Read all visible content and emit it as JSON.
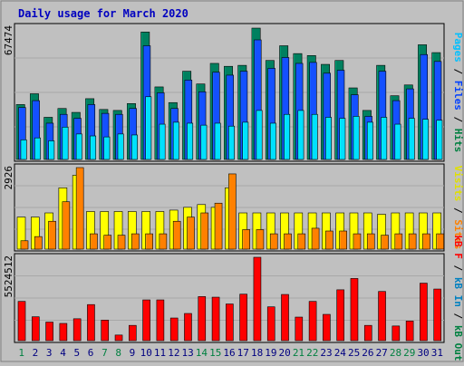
{
  "chart_data": {
    "type": "bar",
    "title": "Daily usage for March 2020",
    "days": [
      "1",
      "2",
      "3",
      "4",
      "5",
      "6",
      "7",
      "8",
      "9",
      "10",
      "11",
      "12",
      "13",
      "14",
      "15",
      "16",
      "17",
      "18",
      "19",
      "20",
      "21",
      "22",
      "23",
      "24",
      "25",
      "26",
      "27",
      "28",
      "29",
      "30",
      "31"
    ],
    "weekend_days": [
      "1",
      "7",
      "8",
      "14",
      "15",
      "21",
      "22",
      "28",
      "29"
    ],
    "panels": [
      {
        "id": "hits",
        "max_label": "67474",
        "ymax": 67474,
        "right_label": [
          {
            "text": "Pages",
            "color": "#00c0ff"
          },
          {
            "text": " / ",
            "color": "#000000"
          },
          {
            "text": "Files",
            "color": "#0040ff"
          },
          {
            "text": " / ",
            "color": "#000000"
          },
          {
            "text": "Hits",
            "color": "#008040"
          }
        ],
        "series": [
          {
            "name": "Hits",
            "color": "#00805f",
            "values": [
              28000,
              33500,
              21500,
              26000,
              24000,
              31000,
              25500,
              25000,
              28500,
              65000,
              37000,
              29000,
              45000,
              38500,
              49000,
              47500,
              48000,
              67000,
              50500,
              58000,
              54000,
              53000,
              48500,
              50500,
              36500,
              25000,
              48000,
              32500,
              38000,
              58500,
              54500
            ]
          },
          {
            "name": "Files",
            "color": "#1450ff",
            "values": [
              26500,
              30000,
              18500,
              23000,
              21000,
              28000,
              23500,
              23000,
              26000,
              58000,
              34000,
              26000,
              40500,
              34500,
              44500,
              43000,
              45000,
              61000,
              46500,
              52000,
              49000,
              49500,
              44000,
              45500,
              33000,
              22000,
              45000,
              30000,
              36000,
              53500,
              50000
            ]
          },
          {
            "name": "Pages",
            "color": "#00e0ff",
            "values": [
              10000,
              11000,
              9500,
              16500,
              13000,
              12000,
              11500,
              13000,
              12500,
              32000,
              18000,
              19000,
              18500,
              17500,
              18500,
              17000,
              19000,
              25000,
              18500,
              23000,
              25000,
              23000,
              21500,
              21000,
              22000,
              19000,
              21500,
              18000,
              21000,
              20500,
              20000
            ]
          }
        ]
      },
      {
        "id": "visits",
        "max_label": "2926",
        "ymax": 2926,
        "right_label": [
          {
            "text": "Visits",
            "color": "#e0e000"
          },
          {
            "text": " / ",
            "color": "#000000"
          },
          {
            "text": "Sites",
            "color": "#ff8000"
          }
        ],
        "series": [
          {
            "name": "Visits",
            "color": "#ffff00",
            "values": [
              1150,
              1150,
              1300,
              2200,
              2650,
              1350,
              1350,
              1350,
              1350,
              1350,
              1350,
              1400,
              1500,
              1600,
              1500,
              2200,
              1300,
              1300,
              1300,
              1300,
              1300,
              1300,
              1300,
              1300,
              1300,
              1300,
              1250,
              1300,
              1300,
              1300,
              1300
            ]
          },
          {
            "name": "Sites",
            "color": "#ff8000",
            "values": [
              300,
              450,
              1000,
              1700,
              2926,
              550,
              500,
              500,
              550,
              550,
              550,
              1000,
              1150,
              1300,
              1650,
              2700,
              700,
              700,
              550,
              550,
              550,
              750,
              650,
              650,
              550,
              550,
              500,
              550,
              550,
              550,
              550
            ]
          }
        ]
      },
      {
        "id": "kbytes",
        "max_label": "5524512",
        "ymax": 5524512,
        "right_label": [
          {
            "text": "kB F",
            "color": "#ff0000"
          },
          {
            "text": " / ",
            "color": "#000000"
          },
          {
            "text": "kB In",
            "color": "#0080c0"
          },
          {
            "text": " / ",
            "color": "#000000"
          },
          {
            "text": "kB Out",
            "color": "#008040"
          }
        ],
        "series": [
          {
            "name": "kB F",
            "color": "#ff0000",
            "values": [
              2600000,
              1580000,
              1230000,
              1140000,
              1450000,
              2390000,
              1360000,
              370000,
              1010000,
              2700000,
              2700000,
              1500000,
              1800000,
              2920000,
              2880000,
              2430000,
              3080000,
              5524512,
              2240000,
              3060000,
              1560000,
              2600000,
              1740000,
              3370000,
              4120000,
              1010000,
              3260000,
              970000,
              1300000,
              3810000,
              3420000
            ]
          }
        ]
      }
    ]
  }
}
